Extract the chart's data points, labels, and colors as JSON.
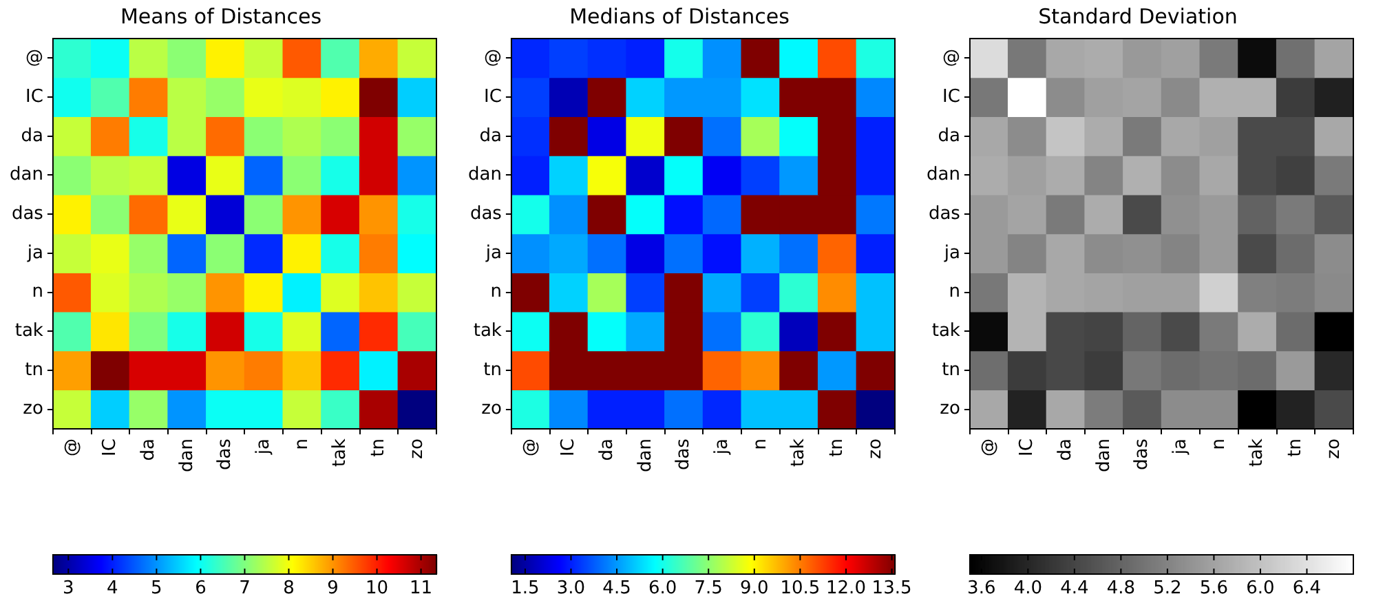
{
  "chart_data": [
    {
      "type": "heatmap",
      "title": "Means of Distances",
      "categories": [
        "@",
        "IC",
        "da",
        "dan",
        "das",
        "ja",
        "n",
        "tak",
        "tn",
        "zo"
      ],
      "y_categories": [
        "@",
        "IC",
        "da",
        "dan",
        "das",
        "ja",
        "n",
        "tak",
        "tn",
        "zo"
      ],
      "colors": [
        "#00007f",
        "#0000ff",
        "#007fff",
        "#00ffff",
        "#7fff7f",
        "#ffff00",
        "#ff7f00",
        "#ff0000",
        "#7f0000"
      ],
      "cells": [
        [
          6.3,
          6.0,
          7.5,
          7.1,
          8.2,
          7.6,
          9.5,
          6.6,
          8.8,
          7.6
        ],
        [
          6.05,
          6.6,
          9.2,
          7.5,
          7.2,
          7.9,
          7.8,
          8.2,
          11.35,
          5.5
        ],
        [
          7.6,
          9.2,
          6.1,
          7.5,
          9.35,
          7.1,
          7.4,
          7.1,
          10.65,
          7.2
        ],
        [
          7.1,
          7.5,
          7.6,
          3.5,
          7.9,
          4.6,
          7.1,
          6.1,
          10.65,
          5.0
        ],
        [
          8.2,
          7.1,
          9.35,
          7.9,
          3.4,
          7.1,
          9.0,
          10.6,
          9.0,
          6.1
        ],
        [
          7.6,
          7.9,
          7.2,
          4.6,
          7.1,
          4.1,
          8.2,
          6.1,
          9.2,
          5.9
        ],
        [
          9.5,
          7.8,
          7.4,
          7.2,
          9.0,
          8.2,
          5.8,
          7.8,
          8.6,
          7.6
        ],
        [
          6.6,
          8.3,
          7.0,
          6.1,
          10.65,
          6.1,
          7.8,
          4.6,
          9.9,
          6.5
        ],
        [
          8.9,
          11.35,
          10.6,
          10.6,
          9.0,
          9.2,
          8.6,
          9.9,
          5.8,
          11.0
        ],
        [
          7.6,
          5.5,
          7.2,
          5.0,
          6.0,
          6.0,
          7.6,
          6.4,
          11.0,
          2.65
        ]
      ],
      "clim": [
        2.65,
        11.35
      ],
      "cticks": [
        3,
        4,
        5,
        6,
        7,
        8,
        9,
        10,
        11
      ]
    },
    {
      "type": "heatmap",
      "title": "Medians of Distances",
      "categories": [
        "@",
        "IC",
        "da",
        "dan",
        "das",
        "ja",
        "n",
        "tak",
        "tn",
        "zo"
      ],
      "y_categories": [
        "@",
        "IC",
        "da",
        "dan",
        "das",
        "ja",
        "n",
        "tak",
        "tn",
        "zo"
      ],
      "colors": [
        "#00007f",
        "#0000ff",
        "#007fff",
        "#00ffff",
        "#7fff7f",
        "#ffff00",
        "#ff7f00",
        "#ff0000",
        "#7f0000"
      ],
      "cells": [
        [
          3.1,
          3.4,
          3.2,
          3.0,
          6.0,
          4.4,
          13.6,
          5.7,
          11.1,
          6.1
        ],
        [
          3.4,
          1.7,
          13.6,
          5.2,
          4.5,
          4.5,
          5.4,
          13.6,
          13.6,
          4.3
        ],
        [
          3.2,
          13.6,
          2.3,
          8.7,
          13.6,
          4.0,
          7.8,
          5.8,
          13.6,
          3.0
        ],
        [
          3.0,
          5.2,
          8.8,
          2.0,
          5.8,
          2.5,
          3.4,
          4.5,
          13.6,
          3.0
        ],
        [
          6.0,
          4.4,
          13.6,
          5.8,
          2.8,
          3.9,
          13.6,
          13.6,
          13.6,
          4.1
        ],
        [
          4.4,
          4.7,
          4.0,
          2.3,
          4.0,
          2.8,
          4.8,
          4.0,
          10.8,
          3.0
        ],
        [
          13.6,
          5.2,
          7.8,
          3.4,
          13.6,
          4.7,
          3.4,
          6.3,
          10.3,
          5.0
        ],
        [
          5.9,
          13.6,
          5.8,
          4.7,
          13.6,
          4.0,
          6.3,
          1.8,
          13.6,
          5.0
        ],
        [
          11.1,
          13.6,
          13.6,
          13.6,
          13.6,
          10.8,
          10.3,
          13.6,
          4.5,
          13.6
        ],
        [
          6.1,
          4.3,
          3.0,
          3.0,
          4.0,
          3.1,
          5.0,
          5.0,
          13.6,
          1.05
        ]
      ],
      "clim": [
        1.05,
        13.6
      ],
      "cticks": [
        1.5,
        {
          "value": 3,
          "label": "3.0"
        },
        4.5,
        {
          "value": 6,
          "label": "6.0"
        },
        7.5,
        {
          "value": 9,
          "label": "9.0"
        },
        10.5,
        {
          "value": 12,
          "label": "12.0"
        },
        13.5
      ]
    },
    {
      "type": "heatmap",
      "title": "Standard Deviation",
      "categories": [
        "@",
        "IC",
        "da",
        "dan",
        "das",
        "ja",
        "n",
        "tak",
        "tn",
        "zo"
      ],
      "y_categories": [
        "@",
        "IC",
        "da",
        "dan",
        "das",
        "ja",
        "n",
        "tak",
        "tn",
        "zo"
      ],
      "colors": [
        "#000000",
        "#ffffff"
      ],
      "cells": [
        [
          6.35,
          5.05,
          5.67,
          5.73,
          5.48,
          5.57,
          5.08,
          3.66,
          4.95,
          5.62
        ],
        [
          5.05,
          6.8,
          5.31,
          5.57,
          5.62,
          5.29,
          5.78,
          5.78,
          4.28,
          3.91
        ],
        [
          5.67,
          5.31,
          6.04,
          5.73,
          5.08,
          5.67,
          5.57,
          4.46,
          4.46,
          5.67
        ],
        [
          5.73,
          5.57,
          5.73,
          5.21,
          5.78,
          5.31,
          5.67,
          4.46,
          4.33,
          5.08
        ],
        [
          5.49,
          5.62,
          5.08,
          5.73,
          4.46,
          5.36,
          5.49,
          4.77,
          5.08,
          4.66
        ],
        [
          5.49,
          5.21,
          5.67,
          5.31,
          5.36,
          5.21,
          5.49,
          4.46,
          4.9,
          5.31
        ],
        [
          5.05,
          5.83,
          5.67,
          5.62,
          5.57,
          5.57,
          6.19,
          5.16,
          5.1,
          5.29
        ],
        [
          3.63,
          5.83,
          4.43,
          4.38,
          4.79,
          4.46,
          5.08,
          5.73,
          4.9,
          3.5
        ],
        [
          4.92,
          4.28,
          4.43,
          4.28,
          5.05,
          4.9,
          4.99,
          4.9,
          5.49,
          4.02
        ],
        [
          5.67,
          3.94,
          5.67,
          5.1,
          4.66,
          5.31,
          5.31,
          3.5,
          3.94,
          4.46
        ]
      ],
      "clim": [
        3.5,
        6.8
      ],
      "cticks": [
        3.6,
        {
          "value": 4,
          "label": "4.0"
        },
        4.4,
        4.8,
        5.2,
        5.6,
        {
          "value": 6,
          "label": "6.0"
        },
        6.4
      ]
    }
  ]
}
